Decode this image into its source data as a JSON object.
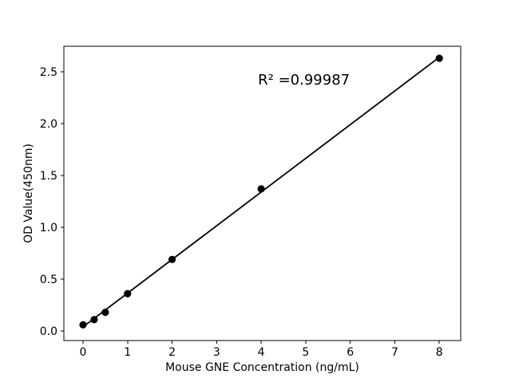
{
  "figure": {
    "background": "#ffffff"
  },
  "chart_data": {
    "type": "scatter",
    "title": "",
    "xlabel": "Mouse GNE Concentration (ng/mL)",
    "ylabel": "OD Value(450nm)",
    "x": [
      0,
      0.25,
      0.5,
      1,
      2,
      4,
      8
    ],
    "y": [
      0.06,
      0.11,
      0.18,
      0.36,
      0.69,
      1.37,
      2.63
    ],
    "fit_line": {
      "x": [
        0,
        8
      ],
      "y": [
        0.04,
        2.64
      ]
    },
    "annotation": {
      "text": "R² =0.99987",
      "x": 4.96,
      "y": 2.377
    },
    "xticks": [
      0,
      1,
      2,
      3,
      4,
      5,
      6,
      7,
      8
    ],
    "yticks": [
      0.0,
      0.5,
      1.0,
      1.5,
      2.0,
      2.5
    ],
    "xlim": [
      -0.43,
      8.48
    ],
    "ylim": [
      -0.092,
      2.746
    ],
    "grid": false,
    "legend": null,
    "marker_color": "#000000",
    "line_color": "#000000",
    "text_color": "#000000",
    "background_color": "#ffffff"
  }
}
